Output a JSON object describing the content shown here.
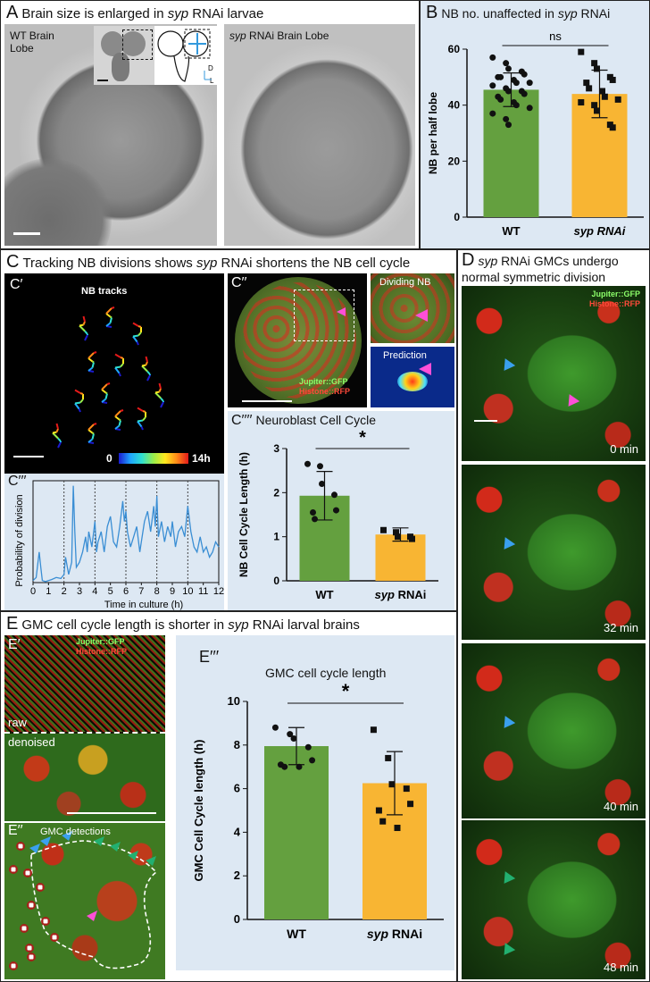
{
  "panelA": {
    "letter": "A",
    "title_pre": "Brain size is enlarged in ",
    "title_em": "syp",
    "title_post": " RNAi larvae",
    "wt_label_line1": "WT Brain",
    "wt_label_line2": "Lobe",
    "syp_label_em": "syp",
    "syp_label_post": " RNAi Brain Lobe",
    "axis_d": "D",
    "axis_l": "L"
  },
  "panelB": {
    "letter": "B",
    "title_pre": "NB no. unaffected in ",
    "title_em": "syp",
    "title_post": " RNAi",
    "sig": "ns",
    "chart_data": {
      "type": "bar",
      "categories": [
        "WT",
        "syp RNAi"
      ],
      "values": [
        45.5,
        44
      ],
      "errors": [
        6,
        8.5
      ],
      "ylabel": "NB per half lobe",
      "ylim": [
        0,
        60
      ],
      "yticks": [
        "0",
        "20",
        "40",
        "60"
      ],
      "points": [
        [
          57,
          55,
          53,
          52,
          51,
          50,
          50,
          49,
          48,
          48,
          47,
          46,
          45,
          45,
          44,
          43,
          42,
          41,
          40,
          39,
          37,
          35,
          33
        ],
        [
          59,
          55,
          53,
          50,
          49,
          48,
          46,
          45,
          43,
          42,
          41,
          40,
          38,
          33,
          32
        ]
      ],
      "colors": [
        "#64a03f",
        "#f8b533"
      ]
    }
  },
  "panelC": {
    "letter": "C",
    "title_pre": "Tracking NB divisions shows ",
    "title_em": "syp",
    "title_post": " RNAi shortens the NB cell cycle",
    "c1_label": "C′",
    "c1_title": "NB tracks",
    "colorbar_min": "0",
    "colorbar_max": "14h",
    "c2_label": "C′′",
    "c2_green": "Jupiter::GFP",
    "c2_red": "Histone::RFP",
    "dividing": "Dividing NB",
    "prediction": "Prediction",
    "c3_label": "C′′′",
    "c4_label": "C′′′′",
    "c4_title": "Neuroblast Cell Cycle",
    "c4_sig": "*",
    "line_chart": {
      "type": "line",
      "ylabel": "Probability of division",
      "xlabel": "Time in culture (h)",
      "xticks": [
        "0",
        "1",
        "2",
        "3",
        "4",
        "5",
        "6",
        "7",
        "8",
        "9",
        "10",
        "11",
        "12"
      ],
      "xlim": [
        0,
        12
      ],
      "dashed_x": [
        2,
        4,
        6,
        8,
        10
      ],
      "x": [
        0,
        0.2,
        0.4,
        0.5,
        0.6,
        0.8,
        1,
        1.2,
        1.5,
        1.8,
        2,
        2.1,
        2.3,
        2.5,
        2.6,
        2.7,
        2.8,
        3,
        3.2,
        3.4,
        3.5,
        3.6,
        3.8,
        4,
        4.1,
        4.2,
        4.4,
        4.6,
        4.8,
        5,
        5.2,
        5.4,
        5.6,
        5.8,
        5.9,
        6,
        6.1,
        6.3,
        6.5,
        6.7,
        6.9,
        7,
        7.2,
        7.4,
        7.6,
        7.8,
        7.9,
        8,
        8.1,
        8.3,
        8.5,
        8.7,
        8.9,
        9,
        9.2,
        9.4,
        9.6,
        9.8,
        10,
        10.2,
        10.4,
        10.6,
        10.8,
        11,
        11.2,
        11.4,
        11.6,
        11.8,
        12
      ],
      "y": [
        0.02,
        0.05,
        0.3,
        0.15,
        0.02,
        0.01,
        0.02,
        0.03,
        0.05,
        0.04,
        0.08,
        0.25,
        0.08,
        0.2,
        0.95,
        0.5,
        0.15,
        0.2,
        0.3,
        0.45,
        0.3,
        0.5,
        0.35,
        0.6,
        0.3,
        0.4,
        0.5,
        0.3,
        0.55,
        0.65,
        0.4,
        0.35,
        0.55,
        0.8,
        0.6,
        0.7,
        0.5,
        0.35,
        0.45,
        0.55,
        0.3,
        0.4,
        0.6,
        0.7,
        0.5,
        0.75,
        0.55,
        0.85,
        0.45,
        0.6,
        0.4,
        0.55,
        0.45,
        0.6,
        0.35,
        0.5,
        0.55,
        0.45,
        0.75,
        0.5,
        0.35,
        0.3,
        0.45,
        0.3,
        0.35,
        0.25,
        0.3,
        0.4,
        0.35
      ]
    },
    "chart_data": {
      "type": "bar",
      "categories": [
        "WT",
        "syp RNAi"
      ],
      "values": [
        1.93,
        1.05
      ],
      "errors": [
        0.55,
        0.15
      ],
      "ylabel": "NB Cell Cycle Length (h)",
      "ylim": [
        0,
        3
      ],
      "yticks": [
        "0",
        "1",
        "2",
        "3"
      ],
      "points": [
        [
          2.65,
          2.6,
          2.2,
          1.95,
          1.6,
          1.55,
          1.4
        ],
        [
          1.15,
          1.1,
          1.0,
          1.0,
          0.95
        ]
      ],
      "colors": [
        "#64a03f",
        "#f8b533"
      ]
    }
  },
  "panelD": {
    "letter": "D",
    "title_em": "syp",
    "title_line1_post": " RNAi GMCs undergo",
    "title_line2": "normal symmetric division",
    "green": "Jupiter::GFP",
    "red": "Histone::RFP",
    "times": [
      "0 min",
      "32 min",
      "40 min",
      "48 min"
    ]
  },
  "panelE": {
    "letter": "E",
    "title_pre": "GMC cell cycle length is shorter in ",
    "title_em": "syp",
    "title_post": " RNAi larval brains",
    "e1_label": "E′",
    "green": "Jupiter::GFP",
    "red": "Histone::RFP",
    "raw": "raw",
    "denoised": "denoised",
    "e2_label": "E′′",
    "e2_title": "GMC detections",
    "e3_label": "E′′′",
    "e3_title": "GMC cell cycle length",
    "sig": "*",
    "chart_data": {
      "type": "bar",
      "categories": [
        "WT",
        "syp RNAi"
      ],
      "values": [
        7.95,
        6.25
      ],
      "errors": [
        0.85,
        1.45
      ],
      "ylabel": "GMC Cell Cycle length (h)",
      "ylim": [
        0,
        10
      ],
      "yticks": [
        "0",
        "2",
        "4",
        "6",
        "8",
        "10"
      ],
      "points": [
        [
          8.8,
          8.5,
          8.3,
          7.9,
          7.3,
          7.1,
          7.0,
          7.0
        ],
        [
          8.7,
          7.4,
          6.2,
          6.0,
          5.3,
          5.0,
          4.5,
          4.2
        ]
      ],
      "colors": [
        "#64a03f",
        "#f8b533"
      ]
    }
  }
}
